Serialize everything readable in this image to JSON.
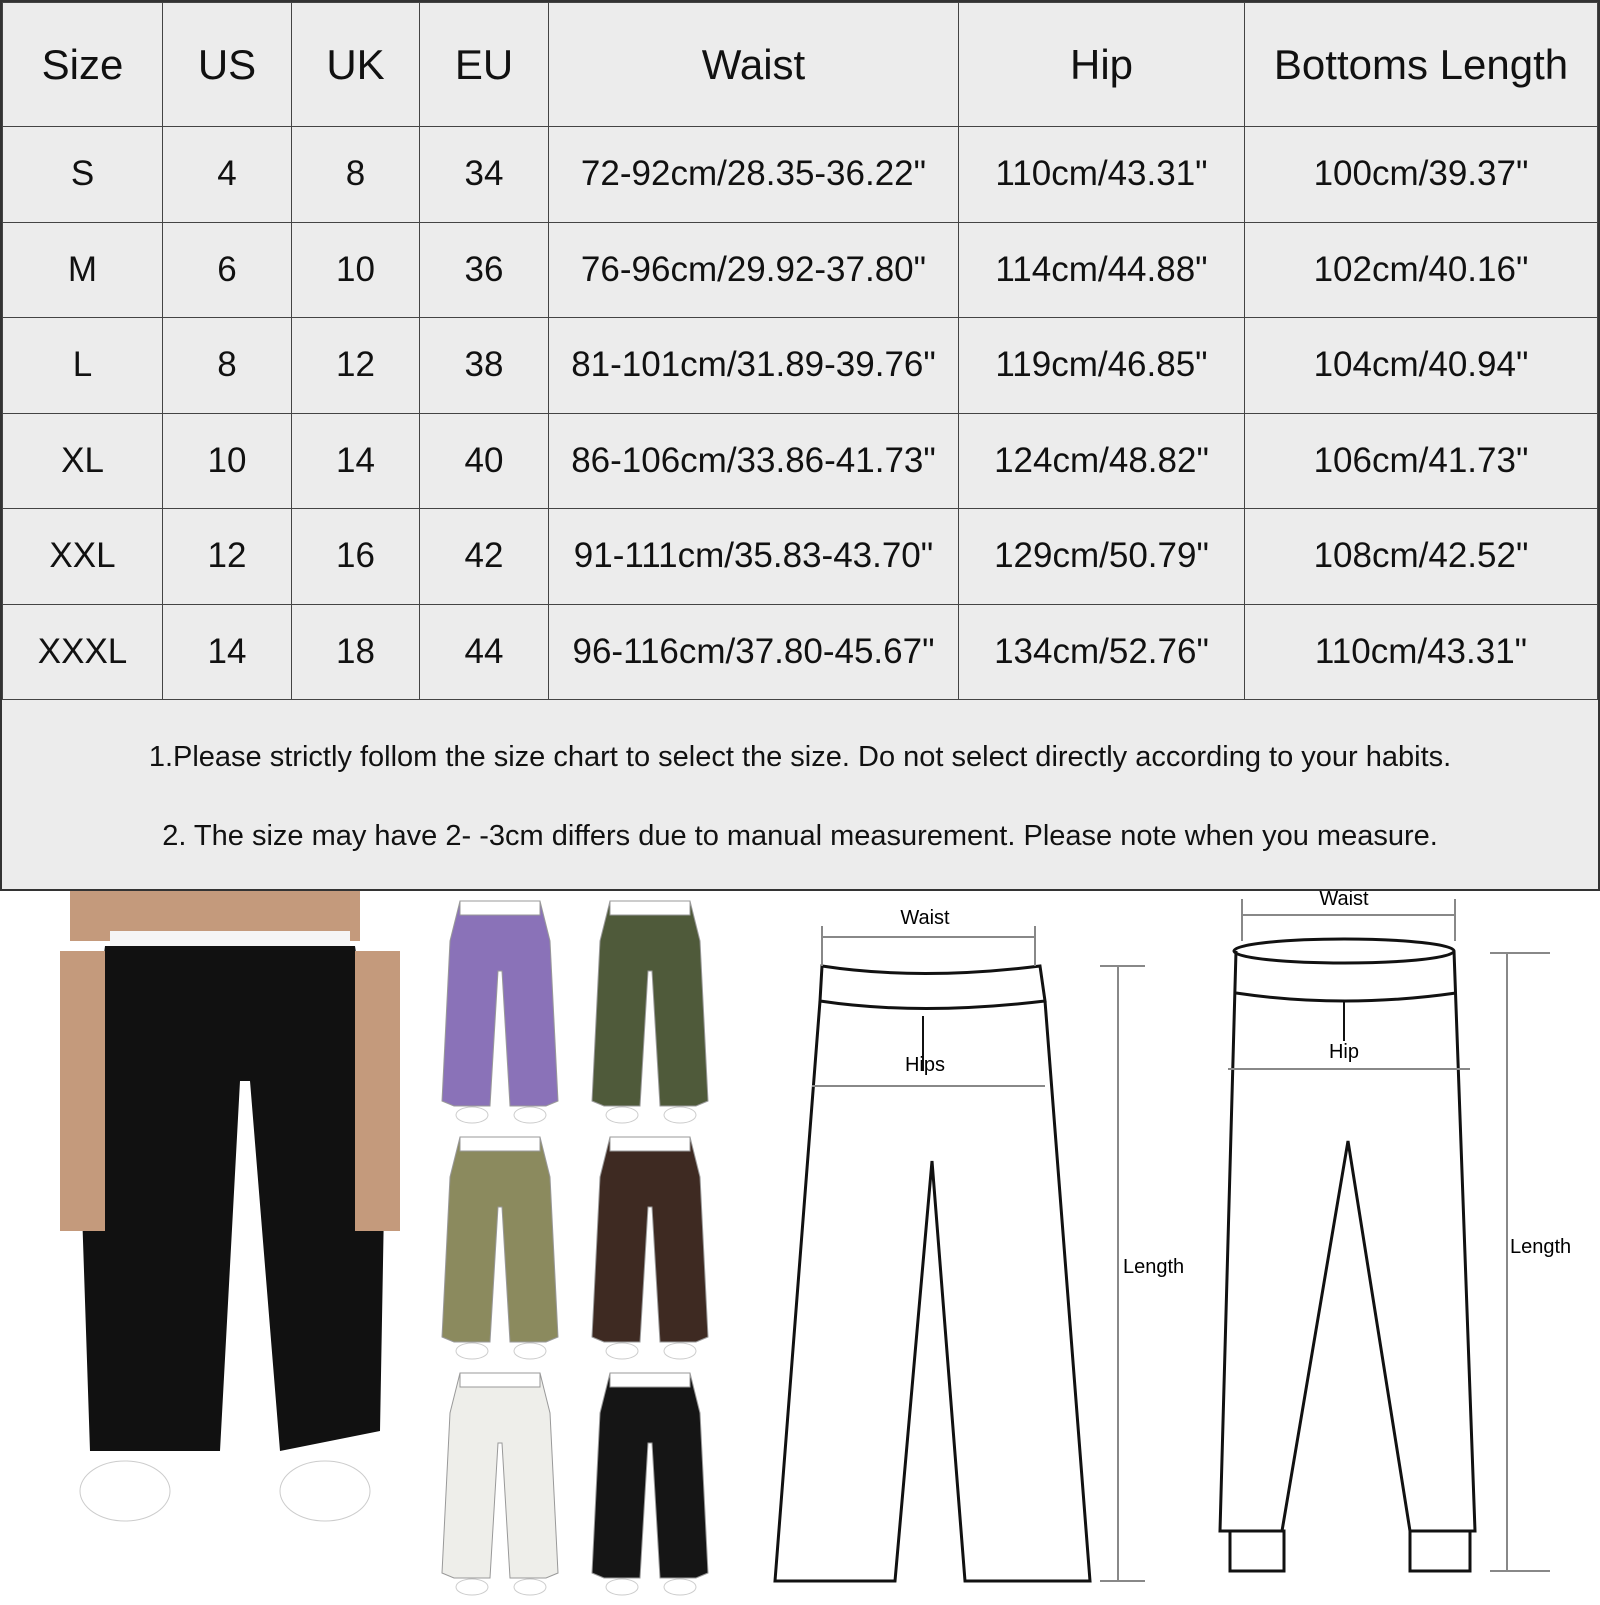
{
  "table": {
    "headers": [
      "Size",
      "US",
      "UK",
      "EU",
      "Waist",
      "Hip",
      "Bottoms Length"
    ],
    "rows": [
      [
        "S",
        "4",
        "8",
        "34",
        "72-92cm/28.35-36.22\"",
        "110cm/43.31\"",
        "100cm/39.37\""
      ],
      [
        "M",
        "6",
        "10",
        "36",
        "76-96cm/29.92-37.80\"",
        "114cm/44.88\"",
        "102cm/40.16\""
      ],
      [
        "L",
        "8",
        "12",
        "38",
        "81-101cm/31.89-39.76\"",
        "119cm/46.85\"",
        "104cm/40.94\""
      ],
      [
        "XL",
        "10",
        "14",
        "40",
        "86-106cm/33.86-41.73\"",
        "124cm/48.82\"",
        "106cm/41.73\""
      ],
      [
        "XXL",
        "12",
        "16",
        "42",
        "91-111cm/35.83-43.70\"",
        "129cm/50.79\"",
        "108cm/42.52\""
      ],
      [
        "XXXL",
        "14",
        "18",
        "44",
        "96-116cm/37.80-45.67\"",
        "134cm/52.76\"",
        "110cm/43.31\""
      ]
    ]
  },
  "notes": [
    "1.Please strictly follom the size chart to select the size. Do not select directly according to your habits.",
    "2. The size may have 2- -3cm differs due to manual measurement. Please note when you measure."
  ],
  "colors": {
    "main": "#111111",
    "variants": [
      "#8a72b8",
      "#4f5a3a",
      "#8b8a5e",
      "#3e2a22",
      "#eeeeea",
      "#151515"
    ]
  },
  "diagram_left": {
    "waist": "Waist",
    "hip": "Hips",
    "length": "Length"
  },
  "diagram_right": {
    "waist": "Waist",
    "hip": "Hip",
    "length": "Length"
  }
}
